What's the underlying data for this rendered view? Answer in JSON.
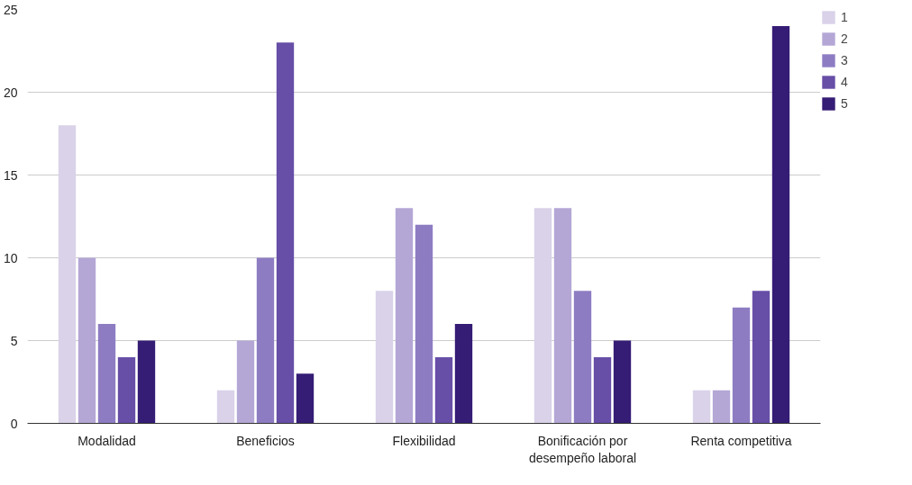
{
  "chart_data": {
    "type": "bar",
    "categories": [
      "Modalidad",
      "Beneficios",
      "Flexibilidad",
      "Bonificación por desempeño laboral",
      "Renta competitiva"
    ],
    "series": [
      {
        "name": "1",
        "color": "#d9d2e9",
        "values": [
          18,
          2,
          8,
          13,
          2
        ]
      },
      {
        "name": "2",
        "color": "#b4a7d6",
        "values": [
          10,
          5,
          13,
          13,
          2
        ]
      },
      {
        "name": "3",
        "color": "#8e7cc3",
        "values": [
          6,
          10,
          12,
          8,
          7
        ]
      },
      {
        "name": "4",
        "color": "#674ea7",
        "values": [
          4,
          23,
          4,
          4,
          8
        ]
      },
      {
        "name": "5",
        "color": "#351c75",
        "values": [
          5,
          3,
          6,
          5,
          24
        ]
      }
    ],
    "ylim": [
      0,
      25
    ],
    "yticks": [
      0,
      5,
      10,
      15,
      20,
      25
    ],
    "grid": "y",
    "legend": "top right"
  }
}
